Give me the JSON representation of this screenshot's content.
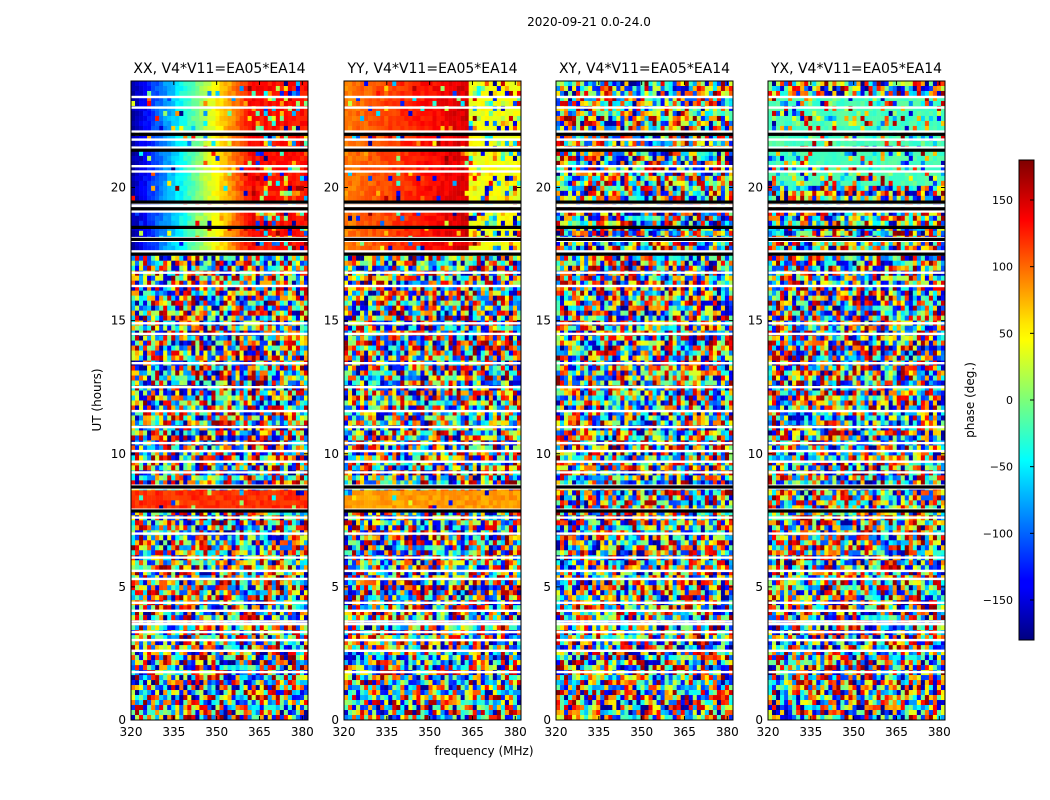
{
  "figure": {
    "suptitle": "2020-09-21 0.0-24.0",
    "xlabel": "frequency (MHz)",
    "ylabel": "UT (hours)",
    "colorbar": {
      "label": "phase (deg.)",
      "range": [
        -180,
        180
      ],
      "ticks": [
        150,
        100,
        50,
        0,
        -50,
        -100,
        -150
      ],
      "tick_labels": [
        "150",
        "100",
        "50",
        "0",
        "−50",
        "−100",
        "−150"
      ],
      "colormap": "jet"
    }
  },
  "chart_data": [
    {
      "type": "heatmap",
      "title": "XX, V4*V11=EA05*EA14",
      "xlim": [
        320,
        382
      ],
      "ylim": [
        0,
        24
      ],
      "xticks": [
        "320",
        "335",
        "350",
        "365",
        "380"
      ],
      "yticks": [
        "0",
        "5",
        "10",
        "15",
        "20"
      ],
      "coherent_regions": [
        {
          "ut": [
            17.5,
            24.0
          ],
          "freq": [
            320,
            363
          ],
          "phase_deg_from": -170,
          "phase_deg_to": 140
        },
        {
          "ut": [
            17.5,
            24.0
          ],
          "freq": [
            363,
            382
          ],
          "phase_deg": 130,
          "note": "partially flagged"
        },
        {
          "ut": [
            7.8,
            8.6
          ],
          "freq": [
            320,
            382
          ],
          "phase_deg": 120
        }
      ],
      "background": "random phase noise"
    },
    {
      "type": "heatmap",
      "title": "YY, V4*V11=EA05*EA14",
      "xlim": [
        320,
        382
      ],
      "ylim": [
        0,
        24
      ],
      "xticks": [
        "320",
        "335",
        "350",
        "365",
        "380"
      ],
      "yticks": [
        "0",
        "5",
        "10",
        "15",
        "20"
      ],
      "coherent_regions": [
        {
          "ut": [
            17.5,
            24.0
          ],
          "freq": [
            320,
            363
          ],
          "phase_deg_from": 90,
          "phase_deg_to": 150
        },
        {
          "ut": [
            17.5,
            24.0
          ],
          "freq": [
            363,
            382
          ],
          "phase_deg": 40,
          "note": "partially flagged"
        },
        {
          "ut": [
            7.8,
            8.6
          ],
          "freq": [
            320,
            382
          ],
          "phase_deg": 80
        }
      ],
      "background": "random phase noise"
    },
    {
      "type": "heatmap",
      "title": "XY, V4*V11=EA05*EA14",
      "xlim": [
        320,
        382
      ],
      "ylim": [
        0,
        24
      ],
      "xticks": [
        "320",
        "335",
        "350",
        "365",
        "380"
      ],
      "yticks": [
        "0",
        "5",
        "10",
        "15",
        "20"
      ],
      "coherent_regions": [],
      "background": "random phase noise"
    },
    {
      "type": "heatmap",
      "title": "YX, V4*V11=EA05*EA14",
      "xlim": [
        320,
        382
      ],
      "ylim": [
        0,
        24
      ],
      "xticks": [
        "320",
        "335",
        "350",
        "365",
        "380"
      ],
      "yticks": [
        "0",
        "5",
        "10",
        "15",
        "20"
      ],
      "coherent_regions": [
        {
          "ut": [
            20.0,
            23.5
          ],
          "freq": [
            320,
            382
          ],
          "phase_deg": -20,
          "note": "weak, mostly noise"
        }
      ],
      "background": "random phase noise"
    }
  ],
  "flags": {
    "flagged_ut_hours": [
      1.8,
      2.6,
      3.0,
      3.3,
      3.6,
      3.7,
      4.1,
      4.4,
      5.3,
      5.6,
      6.1,
      7.0,
      7.6,
      7.9,
      8.7,
      8.8,
      9.3,
      9.7,
      10.1,
      10.4,
      11.0,
      11.6,
      12.5,
      13.4,
      14.5,
      14.9,
      16.3,
      16.8,
      17.5,
      17.6,
      18.0,
      18.1,
      18.5,
      19.1,
      19.3,
      19.4,
      20.6,
      20.8,
      21.5,
      21.8,
      22.1,
      23.0,
      23.4
    ],
    "black_band_ut_hours": [
      7.85,
      8.75,
      17.5,
      18.05,
      18.5,
      19.2,
      19.45,
      21.4,
      22.0
    ]
  }
}
